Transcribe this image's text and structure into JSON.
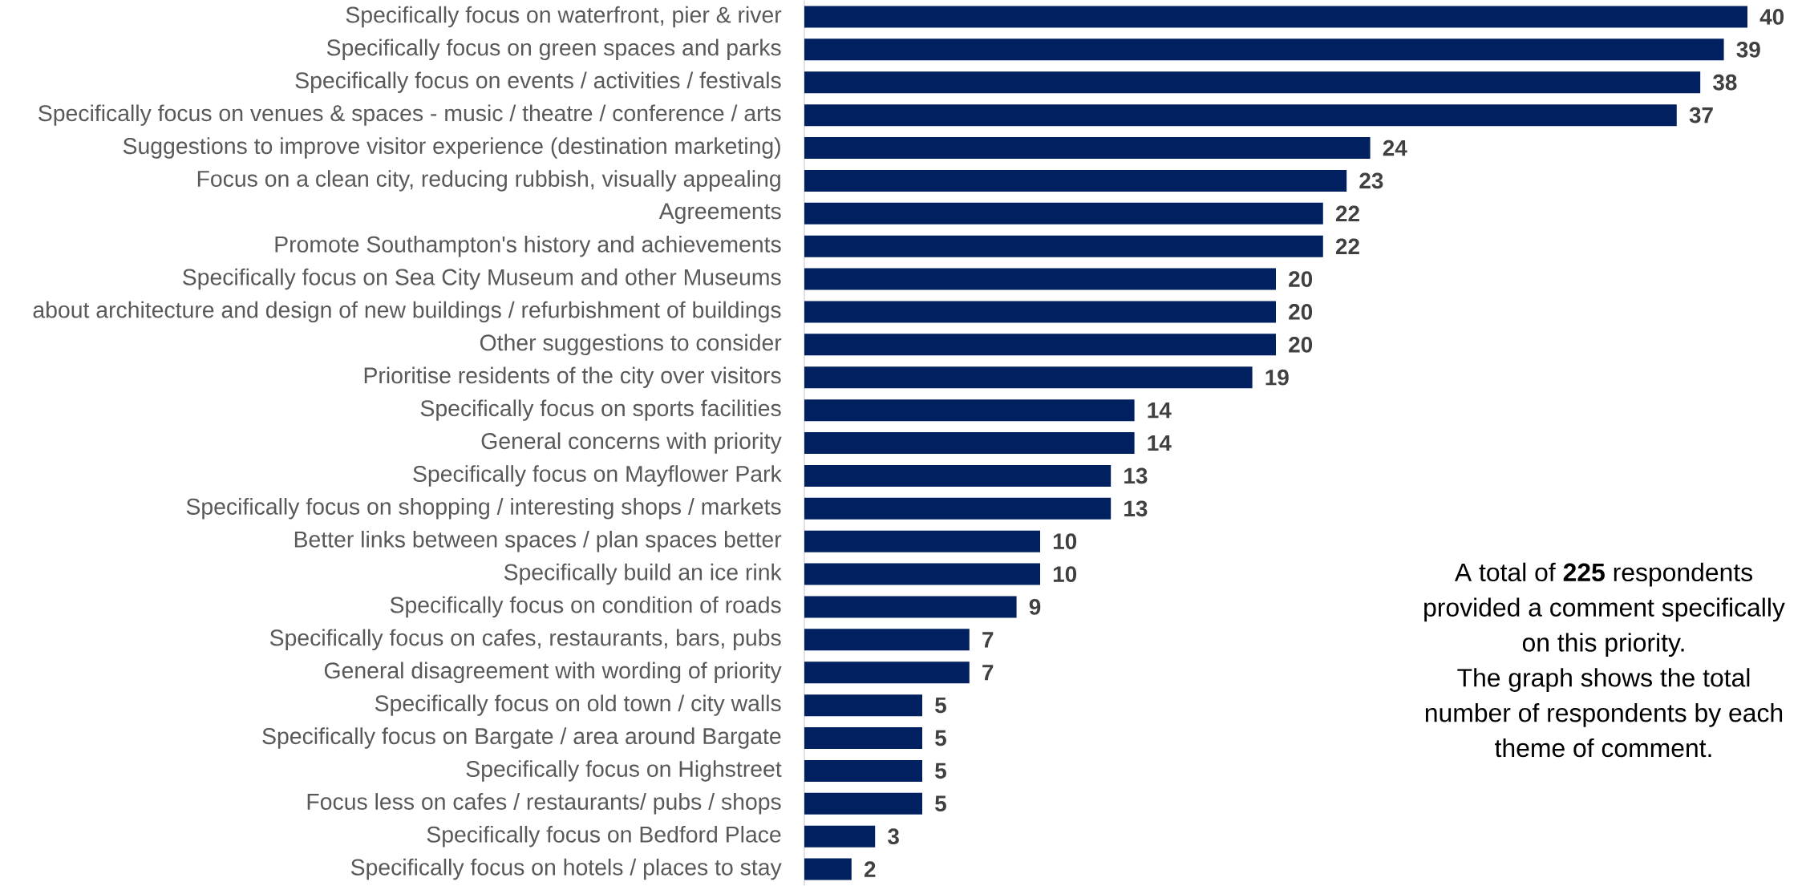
{
  "chart_data": {
    "type": "bar",
    "orientation": "horizontal",
    "categories": [
      "Specifically focus on waterfront, pier & river",
      "Specifically focus on green spaces and parks",
      "Specifically focus on events / activities / festivals",
      "Specifically focus on venues & spaces - music / theatre / conference / arts",
      "Suggestions to improve visitor experience (destination marketing)",
      "Focus on a clean city, reducing rubbish, visually appealing",
      "Agreements",
      "Promote Southampton's history and achievements",
      "Specifically focus on Sea City Museum and other Museums",
      "about architecture and design of new buildings / refurbishment of buildings",
      "Other suggestions to consider",
      "Prioritise residents of the city over visitors",
      "Specifically focus on sports facilities",
      "General concerns with priority",
      "Specifically focus on Mayflower Park",
      "Specifically focus on shopping / interesting shops / markets",
      "Better links between spaces / plan spaces better",
      "Specifically build an ice rink",
      "Specifically focus on condition of roads",
      "Specifically focus on cafes, restaurants, bars, pubs",
      "General disagreement with wording of priority",
      "Specifically focus on old town / city walls",
      "Specifically focus on Bargate / area around Bargate",
      "Specifically focus on Highstreet",
      "Focus less on cafes / restaurants/ pubs / shops",
      "Specifically focus on Bedford Place",
      "Specifically focus on hotels / places to stay"
    ],
    "values": [
      40,
      39,
      38,
      37,
      24,
      23,
      22,
      22,
      20,
      20,
      20,
      19,
      14,
      14,
      13,
      13,
      10,
      10,
      9,
      7,
      7,
      5,
      5,
      5,
      5,
      3,
      2
    ],
    "color": "#002060",
    "data_labels": true,
    "tick_labels": "y",
    "annotations": [
      "A total of **225** respondents provided a comment specifically on this priority.",
      "The graph shows the total number of respondents by each theme of comment."
    ]
  }
}
